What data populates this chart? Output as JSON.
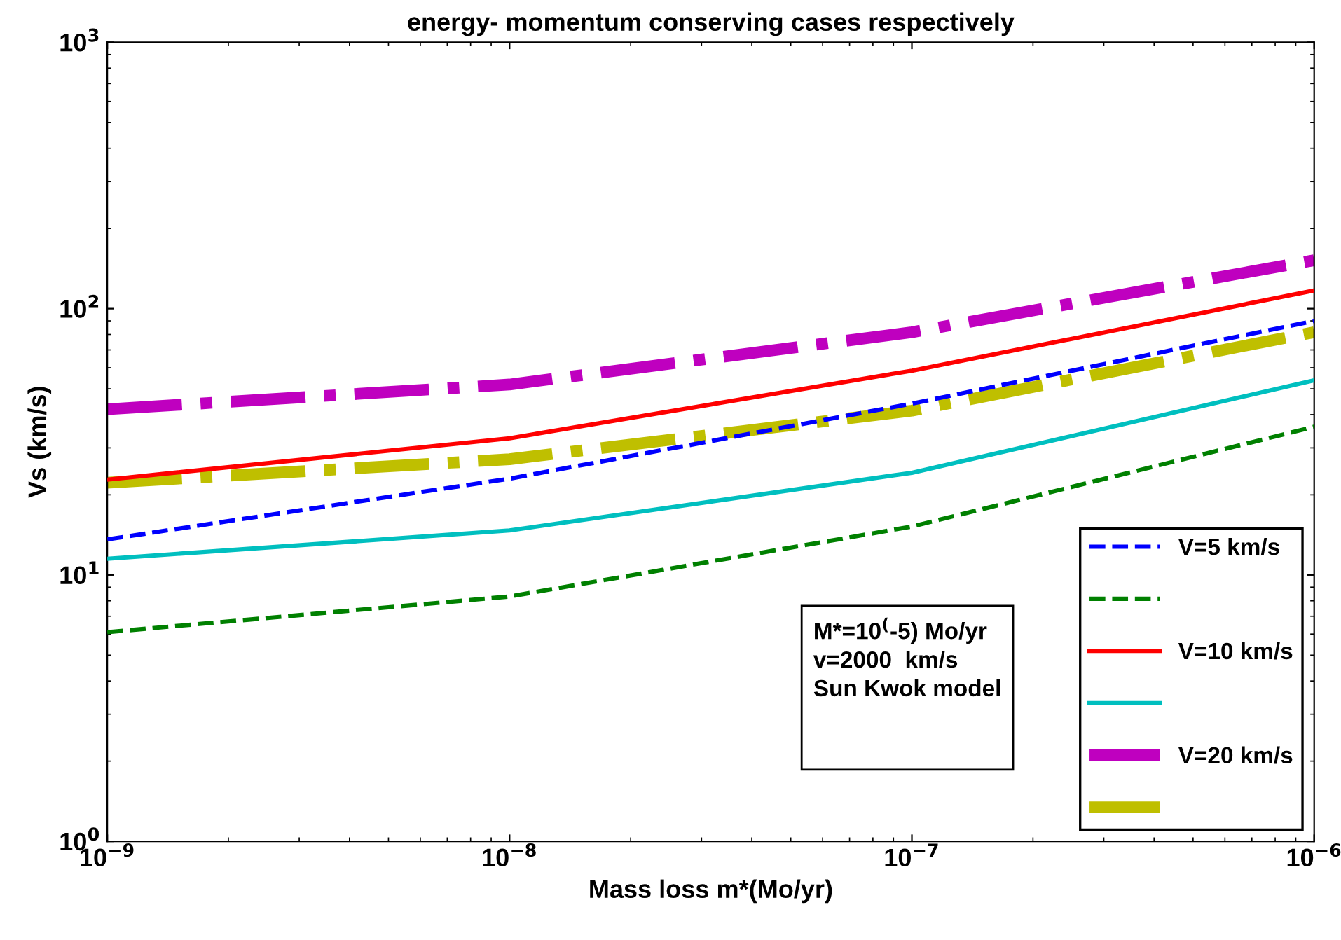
{
  "chart_data": {
    "type": "line",
    "title": "energy- momentum conserving cases respectively",
    "xlabel": "Mass loss m*(Mo/yr)",
    "ylabel": "Vs (km/s)",
    "x": [
      1e-09,
      1e-08,
      1e-07,
      1e-06
    ],
    "series": [
      {
        "name": "V=5 km/s",
        "color": "#0000ff",
        "line_style": "dashed",
        "values": [
          13.6,
          23,
          44,
          90
        ]
      },
      {
        "color": "#008000",
        "line_style": "dashed",
        "values": [
          6.1,
          8.3,
          15.2,
          36
        ]
      },
      {
        "name": "V=10 km/s",
        "color": "#ff0000",
        "line_style": "solid",
        "values": [
          22.8,
          32.6,
          58.5,
          117
        ]
      },
      {
        "color": "#00bfbf",
        "line_style": "solid",
        "values": [
          11.5,
          14.7,
          24.2,
          53.8
        ]
      },
      {
        "name": "V=20 km/s",
        "color": "#bf00bf",
        "line_style": "dashdot",
        "values": [
          41.9,
          51.9,
          81.6,
          152
        ]
      },
      {
        "color": "#bfbf00",
        "line_style": "dashdot",
        "values": [
          22.2,
          27.2,
          41.4,
          81.6
        ]
      }
    ],
    "log": "xy",
    "xlim": [
      1e-09,
      1e-06
    ],
    "ylim": [
      1,
      1000
    ],
    "xticks": [
      {
        "value": 1e-09,
        "label": "10$^{−9}$"
      },
      {
        "value": 1e-08,
        "label": "10$^{−8}$"
      },
      {
        "value": 1e-07,
        "label": "10$^{−7}$"
      },
      {
        "value": 1e-06,
        "label": "10$^{−6}$"
      }
    ],
    "yticks": [
      {
        "value": 1,
        "label": "10$^{0}$"
      },
      {
        "value": 10,
        "label": "10$^{1}$"
      },
      {
        "value": 100,
        "label": "10$^{2}$"
      },
      {
        "value": 1000,
        "label": "10$^{3}$"
      }
    ],
    "annotations": [
      "M*=10$^{(}$-5) Mo/yr",
      "v=2000  km/s",
      "Sun Kwok model"
    ],
    "grid": false,
    "legend": "bottom right",
    "marker": "none"
  }
}
